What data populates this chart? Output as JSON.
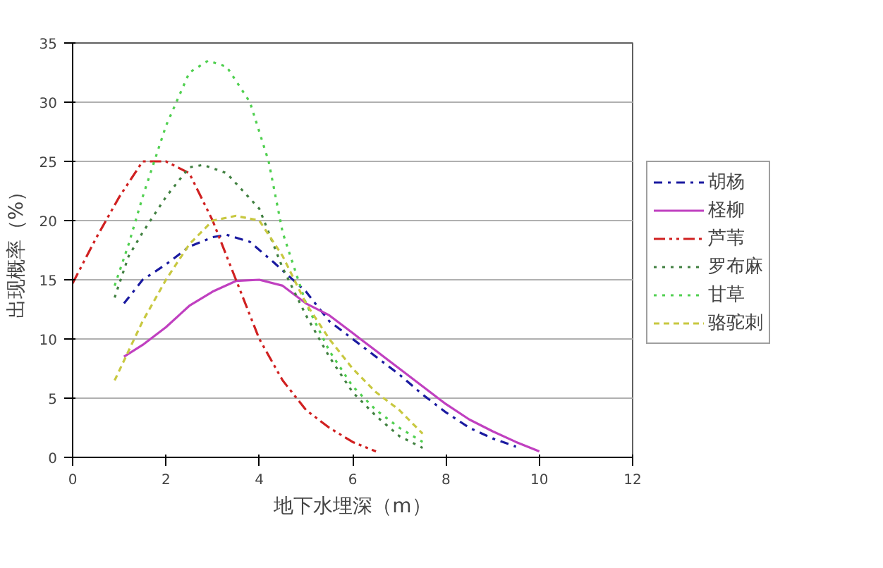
{
  "chart_data": {
    "type": "line",
    "xlabel": "地下水埋深（m）",
    "ylabel": "出现概率（%）",
    "xlim": [
      0,
      12
    ],
    "xticks": [
      0,
      2,
      4,
      6,
      8,
      10,
      12
    ],
    "ylim": [
      0,
      35
    ],
    "yticks": [
      0,
      5,
      10,
      15,
      20,
      25,
      30,
      35
    ],
    "grid": "y",
    "legend": "right",
    "marker": "none",
    "series": [
      {
        "name": "胡杨",
        "color": "#1a1aa0",
        "line_style": "dashdot",
        "x": [
          1.1,
          1.5,
          2,
          2.5,
          3,
          3.3,
          3.8,
          4.3,
          5,
          5.5,
          6,
          6.5,
          7,
          7.5,
          8,
          8.5,
          9,
          9.5
        ],
        "values": [
          13,
          15,
          16.3,
          17.8,
          18.6,
          18.8,
          18.2,
          16.5,
          14,
          11.5,
          10,
          8.5,
          7,
          5.3,
          3.8,
          2.5,
          1.6,
          0.9
        ]
      },
      {
        "name": "柽柳",
        "color": "#c040c0",
        "line_style": "solid",
        "x": [
          1.1,
          1.5,
          2,
          2.5,
          3,
          3.5,
          4,
          4.5,
          5,
          5.5,
          6,
          6.5,
          7,
          7.5,
          8,
          8.5,
          9,
          9.5,
          10
        ],
        "values": [
          8.5,
          9.5,
          11,
          12.8,
          14,
          14.9,
          15,
          14.5,
          13,
          12,
          10.5,
          9,
          7.5,
          6,
          4.5,
          3.2,
          2.2,
          1.3,
          0.5
        ]
      },
      {
        "name": "芦苇",
        "color": "#d02020",
        "line_style": "dashdotdot",
        "x": [
          0,
          0.5,
          1,
          1.5,
          2,
          2.5,
          3,
          3.5,
          4,
          4.5,
          5,
          5.5,
          6,
          6.5
        ],
        "values": [
          14.7,
          18.5,
          22,
          25,
          25,
          24,
          20,
          15,
          10,
          6.5,
          4,
          2.5,
          1.3,
          0.5
        ]
      },
      {
        "name": "罗布麻",
        "color": "#408040",
        "line_style": "dotted",
        "x": [
          0.9,
          1.2,
          1.5,
          2,
          2.5,
          2.8,
          3.3,
          4,
          4.5,
          5,
          5.5,
          6,
          6.5,
          7,
          7.5
        ],
        "values": [
          13.5,
          17,
          19,
          22,
          24.5,
          24.7,
          24,
          21,
          16,
          12,
          8.5,
          5.5,
          3.5,
          1.8,
          0.8
        ]
      },
      {
        "name": "甘草",
        "color": "#50d050",
        "line_style": "dotted",
        "x": [
          0.9,
          1.2,
          1.5,
          2,
          2.5,
          2.9,
          3.3,
          3.8,
          4.2,
          4.5,
          5,
          5.5,
          6,
          6.5,
          7,
          7.5
        ],
        "values": [
          14.5,
          18,
          22,
          28,
          32.5,
          33.5,
          33,
          30,
          25,
          19,
          13,
          9,
          6,
          4,
          2.5,
          1.3
        ]
      },
      {
        "name": "骆驼刺",
        "color": "#c8c840",
        "line_style": "dashed",
        "x": [
          0.9,
          1.2,
          1.5,
          2,
          2.5,
          3,
          3.5,
          4,
          4.5,
          5,
          5.5,
          6,
          6.5,
          7,
          7.5
        ],
        "values": [
          6.5,
          9,
          11.5,
          15,
          18,
          20,
          20.4,
          20,
          17,
          13,
          10,
          7.5,
          5.5,
          4,
          2
        ]
      }
    ]
  }
}
